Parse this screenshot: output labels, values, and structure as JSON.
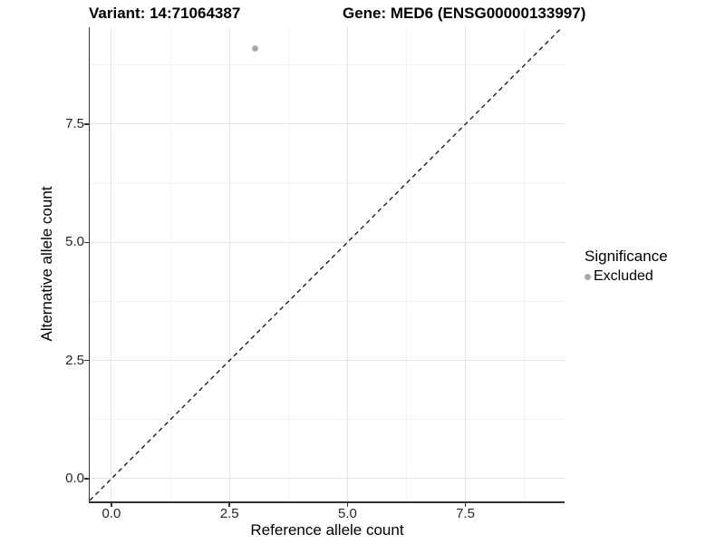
{
  "titles": {
    "variant": "Variant: 14:71064387",
    "gene": "Gene: MED6 (ENSG00000133997)"
  },
  "chart_data": {
    "type": "scatter",
    "xlabel": "Reference allele count",
    "ylabel": "Alternative allele count",
    "xlim": [
      -0.46,
      9.6
    ],
    "ylim": [
      -0.48,
      9.55
    ],
    "x_major_ticks": [
      0,
      2.5,
      5,
      7.5
    ],
    "y_major_ticks": [
      0,
      2.5,
      5,
      7.5
    ],
    "x_tick_labels": [
      "0.0",
      "2.5",
      "5.0",
      "7.5"
    ],
    "y_tick_labels": [
      "0.0",
      "2.5",
      "5.0",
      "7.5"
    ],
    "x_minor_gridlines": [
      1.25,
      3.75,
      6.25,
      8.75
    ],
    "y_minor_gridlines": [
      1.25,
      3.75,
      6.25,
      8.75
    ],
    "grid": true,
    "points": [
      {
        "x": 3.05,
        "y": 9.1,
        "series": "Excluded"
      }
    ],
    "identity_line": {
      "type": "abline",
      "slope": 1,
      "intercept": 0,
      "style": "dashed",
      "t_start": -0.46,
      "t_end": 9.55
    },
    "legend": {
      "position": "right",
      "title": "Significance",
      "items": [
        {
          "label": "Excluded",
          "color": "#a8a8a8"
        }
      ]
    }
  },
  "colors": {
    "point": "#a8a8a8",
    "grid_major": "#e4e4e4",
    "grid_minor": "#f2f2f2",
    "axis_line": "#333333",
    "identity_line": "#111111",
    "background": "#ffffff"
  }
}
